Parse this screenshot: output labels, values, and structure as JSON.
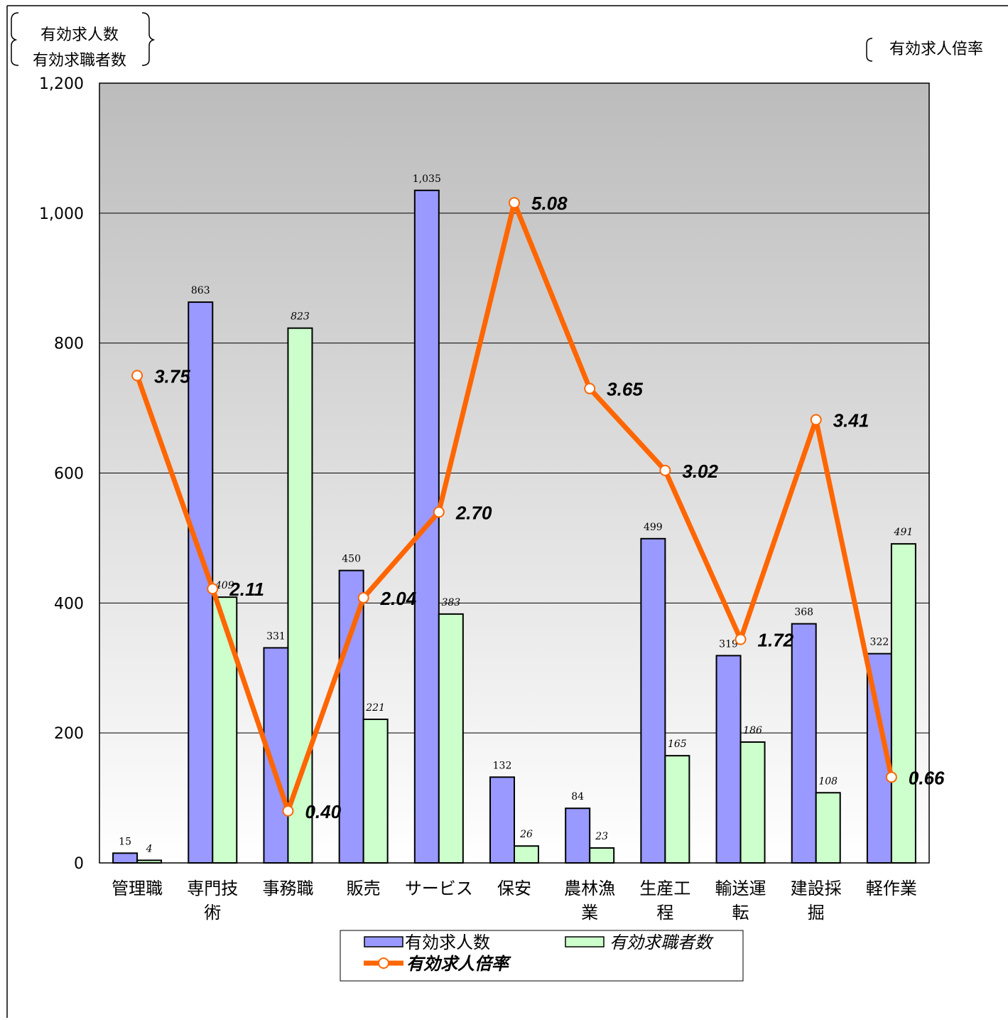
{
  "chart_data": {
    "type": "bar",
    "left_axis_title_line1": "有効求人数",
    "left_axis_title_line2": "有効求職者数",
    "right_axis_title": "有効求人倍率",
    "ylim": [
      0,
      1200
    ],
    "y_ticks": [
      "0",
      "200",
      "400",
      "600",
      "800",
      "1,000",
      "1,200"
    ],
    "categories": [
      [
        "管理職"
      ],
      [
        "専門技",
        "術"
      ],
      [
        "事務職"
      ],
      [
        "販売"
      ],
      [
        "サービス"
      ],
      [
        "保安"
      ],
      [
        "農林漁",
        "業"
      ],
      [
        "生産工",
        "程"
      ],
      [
        "輸送運",
        "転"
      ],
      [
        "建設採",
        "掘"
      ],
      [
        "軽作業"
      ]
    ],
    "series": [
      {
        "name": "有効求人数",
        "color": "#9999ff",
        "values": [
          15,
          863,
          331,
          450,
          1035,
          132,
          84,
          499,
          319,
          368,
          322
        ],
        "labels": [
          "15",
          "863",
          "331",
          "450",
          "1,035",
          "132",
          "84",
          "499",
          "319",
          "368",
          "322"
        ]
      },
      {
        "name": "有効求職者数",
        "color": "#ccffcc",
        "values": [
          4,
          409,
          823,
          221,
          383,
          26,
          23,
          165,
          186,
          108,
          491
        ],
        "labels": [
          "4",
          "409",
          "823",
          "221",
          "383",
          "26",
          "23",
          "165",
          "186",
          "108",
          "491"
        ]
      }
    ],
    "line_series": {
      "name": "有効求人倍率",
      "color": "#ff6600",
      "values": [
        3.75,
        2.11,
        0.4,
        2.04,
        2.7,
        5.08,
        3.65,
        3.02,
        1.72,
        3.41,
        0.66
      ],
      "labels": [
        "3.75",
        "2.11",
        "0.40",
        "2.04",
        "2.70",
        "5.08",
        "3.65",
        "3.02",
        "1.72",
        "3.41",
        "0.66"
      ],
      "ylim": [
        0,
        6
      ]
    },
    "grid": true,
    "legend_position": "bottom"
  }
}
